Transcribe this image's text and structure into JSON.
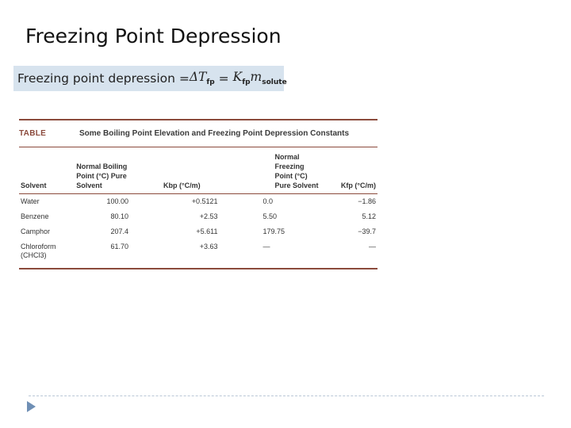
{
  "slide": {
    "title": "Freezing Point Depression"
  },
  "formula": {
    "lhs": "Freezing point depression = ",
    "delta": "ΔT",
    "delta_sub": "fp",
    "eq": " = ",
    "k": "K",
    "k_sub": "fp",
    "m": "m",
    "m_sub": "solute"
  },
  "table": {
    "tag": "TABLE",
    "caption": "Some Boiling Point Elevation and Freezing Point Depression Constants",
    "headers": {
      "solvent": "Solvent",
      "bp": "Normal Boiling Point (°C) Pure Solvent",
      "kbp": "Kbp (°C/m)",
      "fp": "Normal Freezing Point (°C) Pure Solvent",
      "kfp": "Kfp (°C/m)"
    },
    "rows": [
      {
        "solvent": "Water",
        "bp": "100.00",
        "kbp": "+0.5121",
        "fp": "0.0",
        "kfp": "−1.86"
      },
      {
        "solvent": "Benzene",
        "bp": "80.10",
        "kbp": "+2.53",
        "fp": "5.50",
        "kfp": "5.12"
      },
      {
        "solvent": "Camphor",
        "bp": "207.4",
        "kbp": "+5.611",
        "fp": "179.75",
        "kfp": "−39.7"
      },
      {
        "solvent": "Chloroform (CHCl3)",
        "bp": "61.70",
        "kbp": "+3.63",
        "fp": "—",
        "kfp": "—"
      }
    ]
  },
  "colors": {
    "accent_rule": "#8b4a3c",
    "formula_bg": "#d7e3ee",
    "nav_arrow": "#6f8fb5"
  }
}
